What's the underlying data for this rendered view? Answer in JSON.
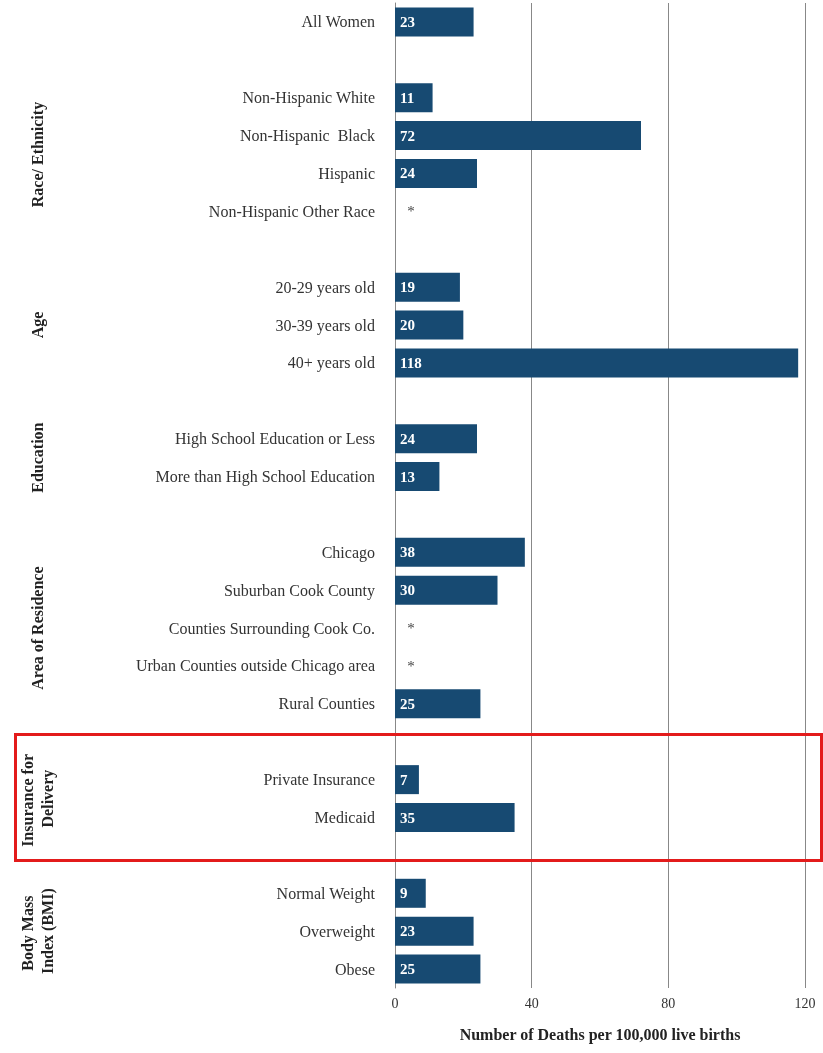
{
  "chart_data": {
    "type": "bar",
    "orientation": "horizontal",
    "categories": [
      "All Women",
      null,
      "Non-Hispanic White",
      "Non-Hispanic  Black",
      "Hispanic",
      "Non-Hispanic Other Race",
      null,
      "20-29 years old",
      "30-39 years old",
      "40+ years old",
      null,
      "High School Education or Less",
      "More than High School Education",
      null,
      "Chicago",
      "Suburban Cook County",
      "Counties Surrounding Cook Co.",
      "Urban Counties outside Chicago area",
      "Rural Counties",
      null,
      "Private Insurance",
      "Medicaid",
      null,
      "Normal Weight",
      "Overweight",
      "Obese"
    ],
    "values": [
      23,
      null,
      11,
      72,
      24,
      null,
      null,
      19,
      20,
      118,
      null,
      24,
      13,
      null,
      38,
      30,
      null,
      null,
      25,
      null,
      7,
      35,
      null,
      9,
      23,
      25
    ],
    "value_labels": [
      "23",
      null,
      "11",
      "72",
      "24",
      "*",
      null,
      "19",
      "20",
      "118",
      null,
      "24",
      "13",
      null,
      "38",
      "30",
      "*",
      "*",
      "25",
      null,
      "7",
      "35",
      null,
      "9",
      "23",
      "25"
    ],
    "color": "#174a72",
    "xlabel": "Number of Deaths per 100,000 live births",
    "xlim": [
      0,
      120
    ],
    "xticks": [
      0,
      40,
      80,
      120
    ],
    "grid": "x",
    "annotations": [
      "Race/ Ethnicity",
      "Age",
      "Education",
      "Area of Residence",
      "Insurance for Delivery",
      "Body Mass Index (BMI)"
    ]
  }
}
